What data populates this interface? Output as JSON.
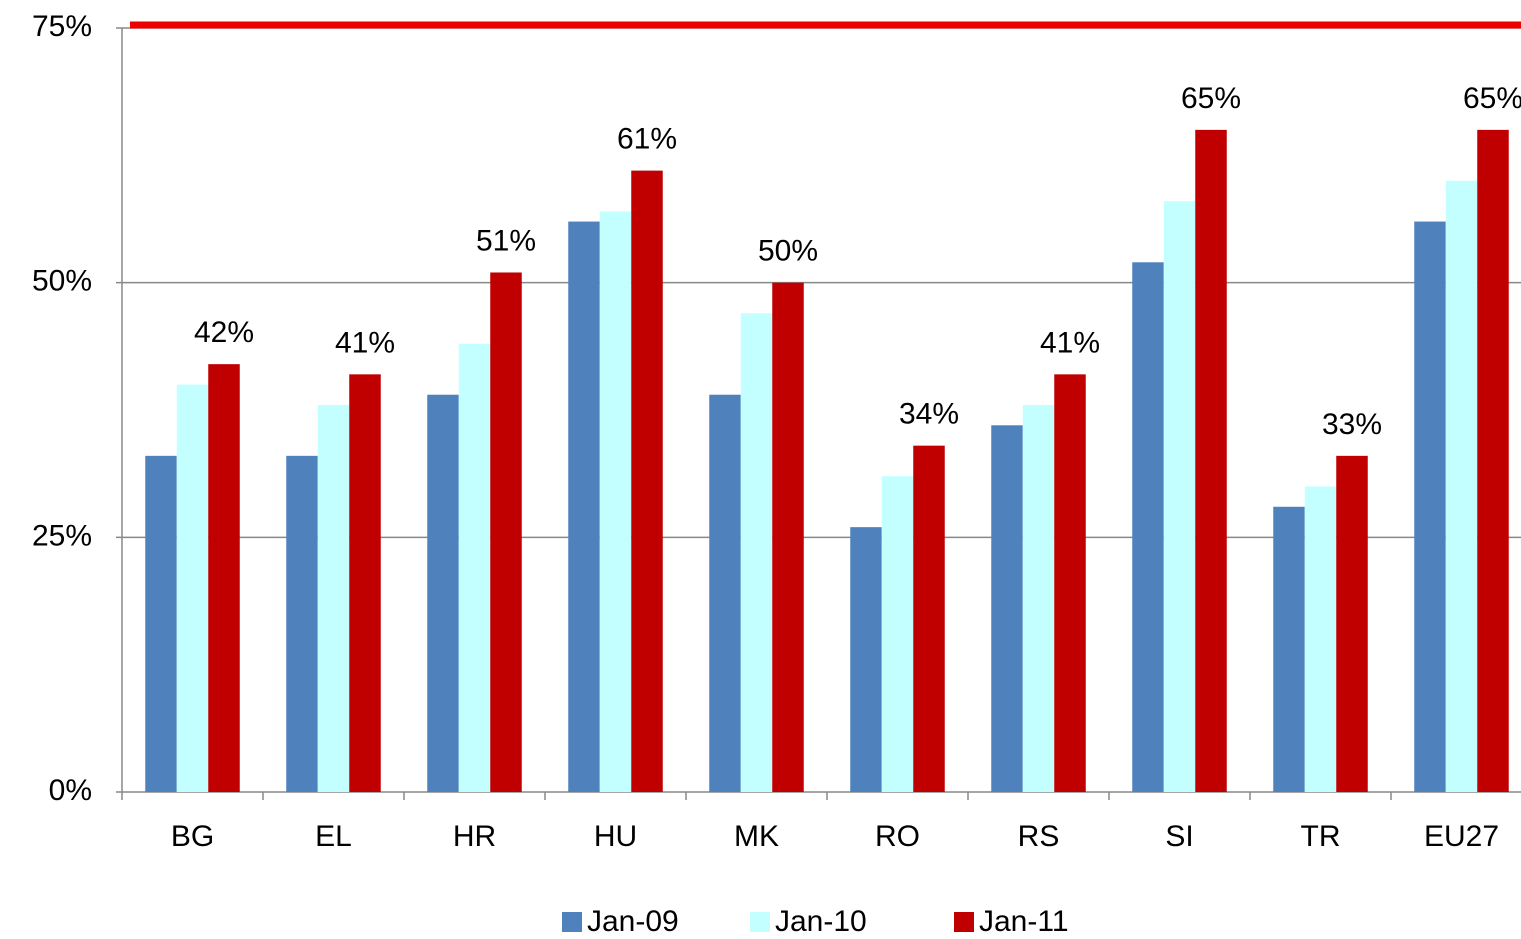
{
  "chart_data": {
    "type": "bar",
    "categories": [
      "BG",
      "EL",
      "HR",
      "HU",
      "MK",
      "RO",
      "RS",
      "SI",
      "TR",
      "EU27"
    ],
    "series": [
      {
        "name": "Jan-09",
        "color": "#4f81bd",
        "values": [
          33,
          33,
          39,
          56,
          39,
          26,
          36,
          52,
          28,
          56
        ]
      },
      {
        "name": "Jan-10",
        "color": "#c4ffff",
        "values": [
          40,
          38,
          44,
          57,
          47,
          31,
          38,
          58,
          30,
          60
        ]
      },
      {
        "name": "Jan-11",
        "color": "#c00000",
        "values": [
          42,
          41,
          51,
          61,
          50,
          34,
          41,
          65,
          33,
          65
        ],
        "value_labels": [
          "42%",
          "41%",
          "51%",
          "61%",
          "50%",
          "34%",
          "41%",
          "65%",
          "33%",
          "65%"
        ]
      }
    ],
    "ylim": [
      0,
      75
    ],
    "yticks": [
      {
        "value": 0,
        "label": "0%"
      },
      {
        "value": 25,
        "label": "25%"
      },
      {
        "value": 50,
        "label": "50%"
      },
      {
        "value": 75,
        "label": "75%"
      }
    ],
    "grid": true,
    "reference_line": {
      "value": 75,
      "color": "#ee0000"
    },
    "legend": "bottom"
  }
}
